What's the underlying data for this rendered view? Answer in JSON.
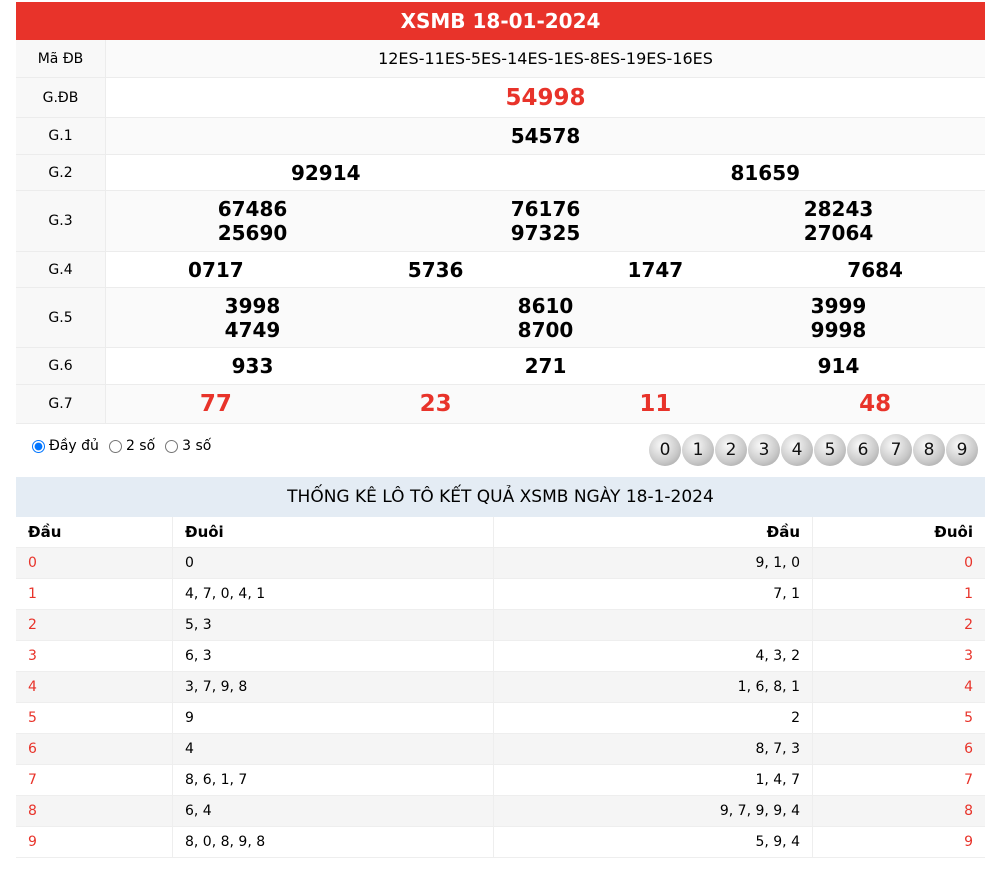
{
  "title": "XSMB 18-01-2024",
  "prizes": [
    {
      "label": "Mã ĐB",
      "values": [
        [
          "12ES-11ES-5ES-14ES-1ES-8ES-19ES-16ES"
        ]
      ],
      "style": "code"
    },
    {
      "label": "G.ĐB",
      "values": [
        [
          "54998"
        ]
      ],
      "style": "special"
    },
    {
      "label": "G.1",
      "values": [
        [
          "54578"
        ]
      ]
    },
    {
      "label": "G.2",
      "values": [
        [
          "92914"
        ],
        [
          "81659"
        ]
      ]
    },
    {
      "label": "G.3",
      "values": [
        [
          "67486",
          "25690"
        ],
        [
          "76176",
          "97325"
        ],
        [
          "28243",
          "27064"
        ]
      ]
    },
    {
      "label": "G.4",
      "values": [
        [
          "0717"
        ],
        [
          "5736"
        ],
        [
          "1747"
        ],
        [
          "7684"
        ]
      ]
    },
    {
      "label": "G.5",
      "values": [
        [
          "3998",
          "4749"
        ],
        [
          "8610",
          "8700"
        ],
        [
          "3999",
          "9998"
        ]
      ]
    },
    {
      "label": "G.6",
      "values": [
        [
          "933"
        ],
        [
          "271"
        ],
        [
          "914"
        ]
      ]
    },
    {
      "label": "G.7",
      "values": [
        [
          "77"
        ],
        [
          "23"
        ],
        [
          "11"
        ],
        [
          "48"
        ]
      ],
      "style": "special"
    }
  ],
  "options": {
    "selected": "Đầy đủ",
    "items": [
      "Đầy đủ",
      "2 số",
      "3 số"
    ]
  },
  "balls": [
    "0",
    "1",
    "2",
    "3",
    "4",
    "5",
    "6",
    "7",
    "8",
    "9"
  ],
  "stats": {
    "title": "THỐNG KÊ LÔ TÔ KẾT QUẢ XSMB NGÀY 18-1-2024",
    "headers": [
      "Đầu",
      "Đuôi",
      "Đầu",
      "Đuôi"
    ],
    "rows": [
      [
        "0",
        "0",
        "9, 1, 0",
        "0"
      ],
      [
        "1",
        "4, 7, 0, 4, 1",
        "7, 1",
        "1"
      ],
      [
        "2",
        "5, 3",
        "",
        "2"
      ],
      [
        "3",
        "6, 3",
        "4, 3, 2",
        "3"
      ],
      [
        "4",
        "3, 7, 9, 8",
        "1, 6, 8, 1",
        "4"
      ],
      [
        "5",
        "9",
        "2",
        "5"
      ],
      [
        "6",
        "4",
        "8, 7, 3",
        "6"
      ],
      [
        "7",
        "8, 6, 1, 7",
        "1, 4, 7",
        "7"
      ],
      [
        "8",
        "6, 4",
        "9, 7, 9, 9, 4",
        "8"
      ],
      [
        "9",
        "8, 0, 8, 9, 8",
        "5, 9, 4",
        "9"
      ]
    ]
  },
  "colors": {
    "accent": "#e8332a",
    "stats_header_bg": "#e4ecf4"
  }
}
